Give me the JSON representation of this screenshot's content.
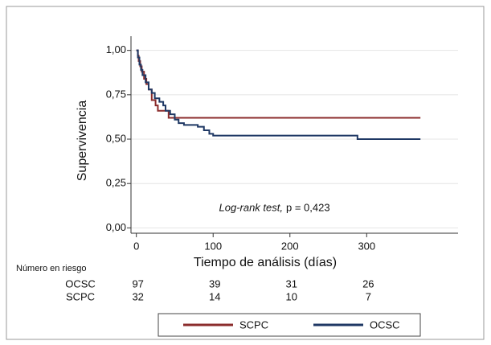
{
  "chart_data": {
    "type": "step",
    "xlabel": "Tiempo de análisis (días)",
    "ylabel": "Supervivencia",
    "xlim": [
      -7,
      419
    ],
    "xticks": [
      0,
      100,
      200,
      300
    ],
    "ylim": [
      -0.03,
      1.08
    ],
    "yticks": [
      {
        "value": 0,
        "label": "0,00"
      },
      {
        "value": 0.25,
        "label": "0,25"
      },
      {
        "value": 0.5,
        "label": "0,50"
      },
      {
        "value": 0.75,
        "label": "0,75"
      },
      {
        "value": 1,
        "label": "1,00"
      }
    ],
    "grid": true,
    "legend": "bottom",
    "series": [
      {
        "name": "SCPC",
        "color": "#8b2c2c",
        "x": [
          0,
          2,
          2,
          3,
          3,
          5,
          5,
          7,
          7,
          10,
          10,
          13,
          13,
          16,
          16,
          20,
          20,
          25,
          25,
          28,
          28,
          42,
          42,
          370
        ],
        "values": [
          1,
          1,
          0.97,
          0.97,
          0.94,
          0.94,
          0.91,
          0.91,
          0.88,
          0.88,
          0.84,
          0.84,
          0.81,
          0.81,
          0.78,
          0.78,
          0.72,
          0.72,
          0.69,
          0.69,
          0.66,
          0.66,
          0.62,
          0.62
        ]
      },
      {
        "name": "OCSC",
        "color": "#1f3864",
        "x": [
          0,
          2,
          2,
          4,
          4,
          6,
          6,
          8,
          8,
          12,
          12,
          16,
          16,
          20,
          20,
          24,
          24,
          30,
          30,
          35,
          35,
          38,
          38,
          44,
          44,
          50,
          50,
          55,
          55,
          62,
          62,
          80,
          80,
          88,
          88,
          95,
          95,
          100,
          100,
          288,
          288,
          370
        ],
        "values": [
          1,
          1,
          0.96,
          0.96,
          0.92,
          0.92,
          0.89,
          0.89,
          0.86,
          0.86,
          0.82,
          0.82,
          0.78,
          0.78,
          0.76,
          0.76,
          0.73,
          0.73,
          0.71,
          0.71,
          0.69,
          0.69,
          0.66,
          0.66,
          0.64,
          0.64,
          0.61,
          0.61,
          0.59,
          0.59,
          0.58,
          0.58,
          0.57,
          0.57,
          0.55,
          0.55,
          0.53,
          0.53,
          0.52,
          0.52,
          0.5,
          0.5
        ]
      }
    ],
    "annotation": {
      "italic": "Log-rank test,",
      "text": "p = 0,423"
    },
    "risk_table": {
      "title": "Número en riesgo",
      "rows": [
        {
          "name": "OCSC",
          "values": [
            97,
            39,
            31,
            26
          ]
        },
        {
          "name": "SCPC",
          "values": [
            32,
            14,
            10,
            7
          ]
        }
      ]
    }
  }
}
